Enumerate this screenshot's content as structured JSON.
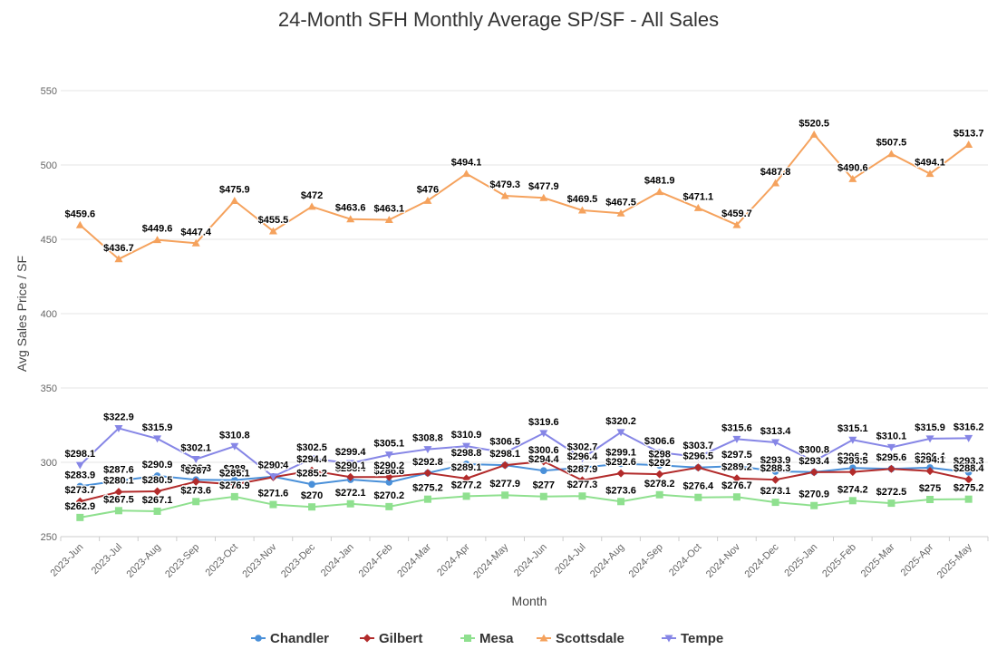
{
  "chart_data": {
    "type": "line",
    "title": "24-Month SFH Monthly Average SP/SF - All Sales",
    "xlabel": "Month",
    "ylabel": "Avg Sales Price / SF",
    "ylim": [
      250,
      575
    ],
    "yticks": [
      250,
      300,
      350,
      400,
      450,
      500,
      550
    ],
    "grid": true,
    "legend": "bottom-center",
    "value_prefix": "$",
    "categories": [
      "2023-Jun",
      "2023-Jul",
      "2023-Aug",
      "2023-Sep",
      "2023-Oct",
      "2023-Nov",
      "2023-Dec",
      "2024-Jan",
      "2024-Feb",
      "2024-Mar",
      "2024-Apr",
      "2024-May",
      "2024-Jun",
      "2024-Jul",
      "2024-Aug",
      "2024-Sep",
      "2024-Oct",
      "2024-Nov",
      "2024-Dec",
      "2025-Jan",
      "2025-Feb",
      "2025-Mar",
      "2025-Apr",
      "2025-May"
    ],
    "series": [
      {
        "name": "Chandler",
        "color": "#4a90d9",
        "marker": "circle",
        "values": [
          283.9,
          287.6,
          290.9,
          288.3,
          288,
          290.4,
          285.2,
          288.4,
          286.6,
          292.8,
          298.8,
          298.1,
          294.4,
          296.4,
          299.1,
          298,
          296.5,
          297.5,
          293.9,
          293.4,
          296.2,
          295.6,
          296.4,
          293.3
        ]
      },
      {
        "name": "Gilbert",
        "color": "#b22b2b",
        "marker": "diamond",
        "values": [
          273.7,
          280.1,
          280.5,
          287,
          285.1,
          290,
          294.4,
          290.1,
          290.2,
          292.8,
          289.1,
          298.1,
          300.6,
          287.9,
          292.6,
          292,
          296.5,
          289.2,
          288.3,
          293.4,
          293.5,
          295.6,
          294.1,
          288.4
        ]
      },
      {
        "name": "Mesa",
        "color": "#8fe08f",
        "marker": "square",
        "values": [
          262.9,
          267.5,
          267.1,
          273.6,
          276.9,
          271.6,
          270,
          272.1,
          270.2,
          275.2,
          277.2,
          277.9,
          277,
          277.3,
          273.6,
          278.2,
          276.4,
          276.7,
          273.1,
          270.9,
          274.2,
          272.5,
          275,
          275.2
        ]
      },
      {
        "name": "Scottsdale",
        "color": "#f5a25d",
        "marker": "triangle",
        "values": [
          459.6,
          436.7,
          449.6,
          447.4,
          475.9,
          455.5,
          472,
          463.6,
          463.1,
          476,
          494.1,
          479.3,
          477.9,
          469.5,
          467.5,
          481.9,
          471.1,
          459.7,
          487.8,
          520.5,
          490.6,
          507.5,
          494.1,
          513.7
        ]
      },
      {
        "name": "Tempe",
        "color": "#8686e6",
        "marker": "triangle-down",
        "values": [
          298.1,
          322.9,
          315.9,
          302.1,
          310.8,
          290.4,
          302.5,
          299.4,
          305.1,
          308.8,
          310.9,
          306.5,
          319.6,
          302.7,
          320.2,
          306.6,
          303.7,
          315.6,
          313.4,
          300.8,
          315.1,
          310.1,
          315.9,
          316.2
        ]
      }
    ]
  }
}
